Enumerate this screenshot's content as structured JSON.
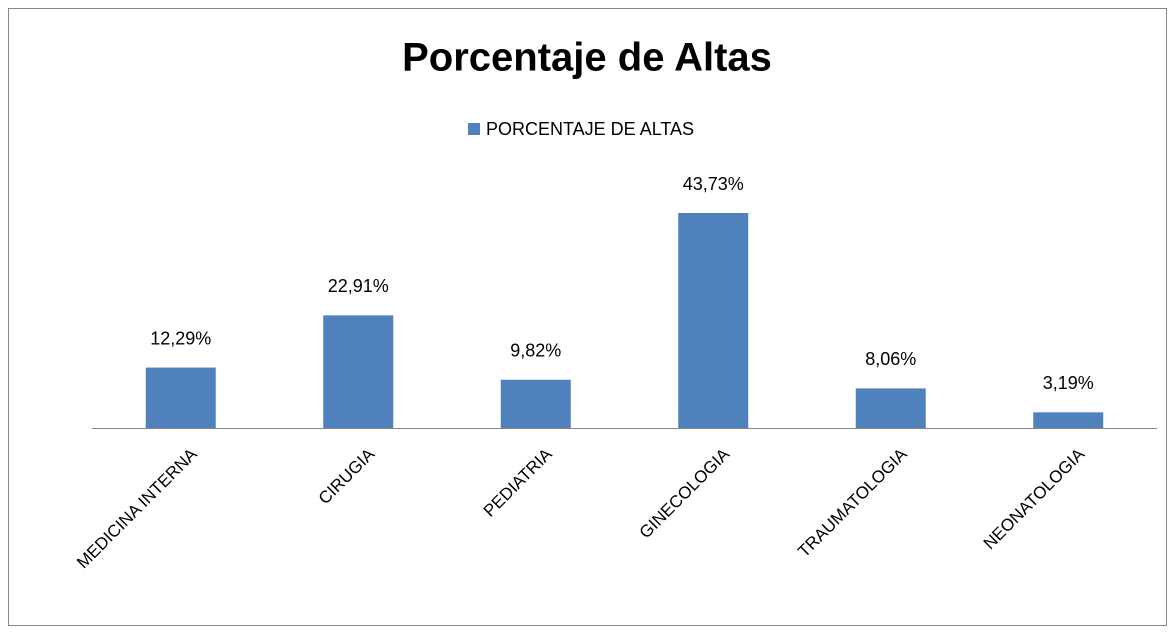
{
  "chart_data": {
    "type": "bar",
    "title": "Porcentaje de Altas",
    "categories": [
      "MEDICINA INTERNA",
      "CIRUGIA",
      "PEDIATRIA",
      "GINECOLOGIA",
      "TRAUMATOLOGIA",
      "NEONATOLOGIA"
    ],
    "series": [
      {
        "name": "PORCENTAJE DE ALTAS",
        "color": "#4f81bd",
        "values": [
          12.29,
          22.91,
          9.82,
          43.73,
          8.06,
          3.19
        ],
        "value_labels": [
          "12,29%",
          "22,91%",
          "9,82%",
          "43,73%",
          "8,06%",
          "3,19%"
        ]
      }
    ],
    "legend": "top"
  }
}
